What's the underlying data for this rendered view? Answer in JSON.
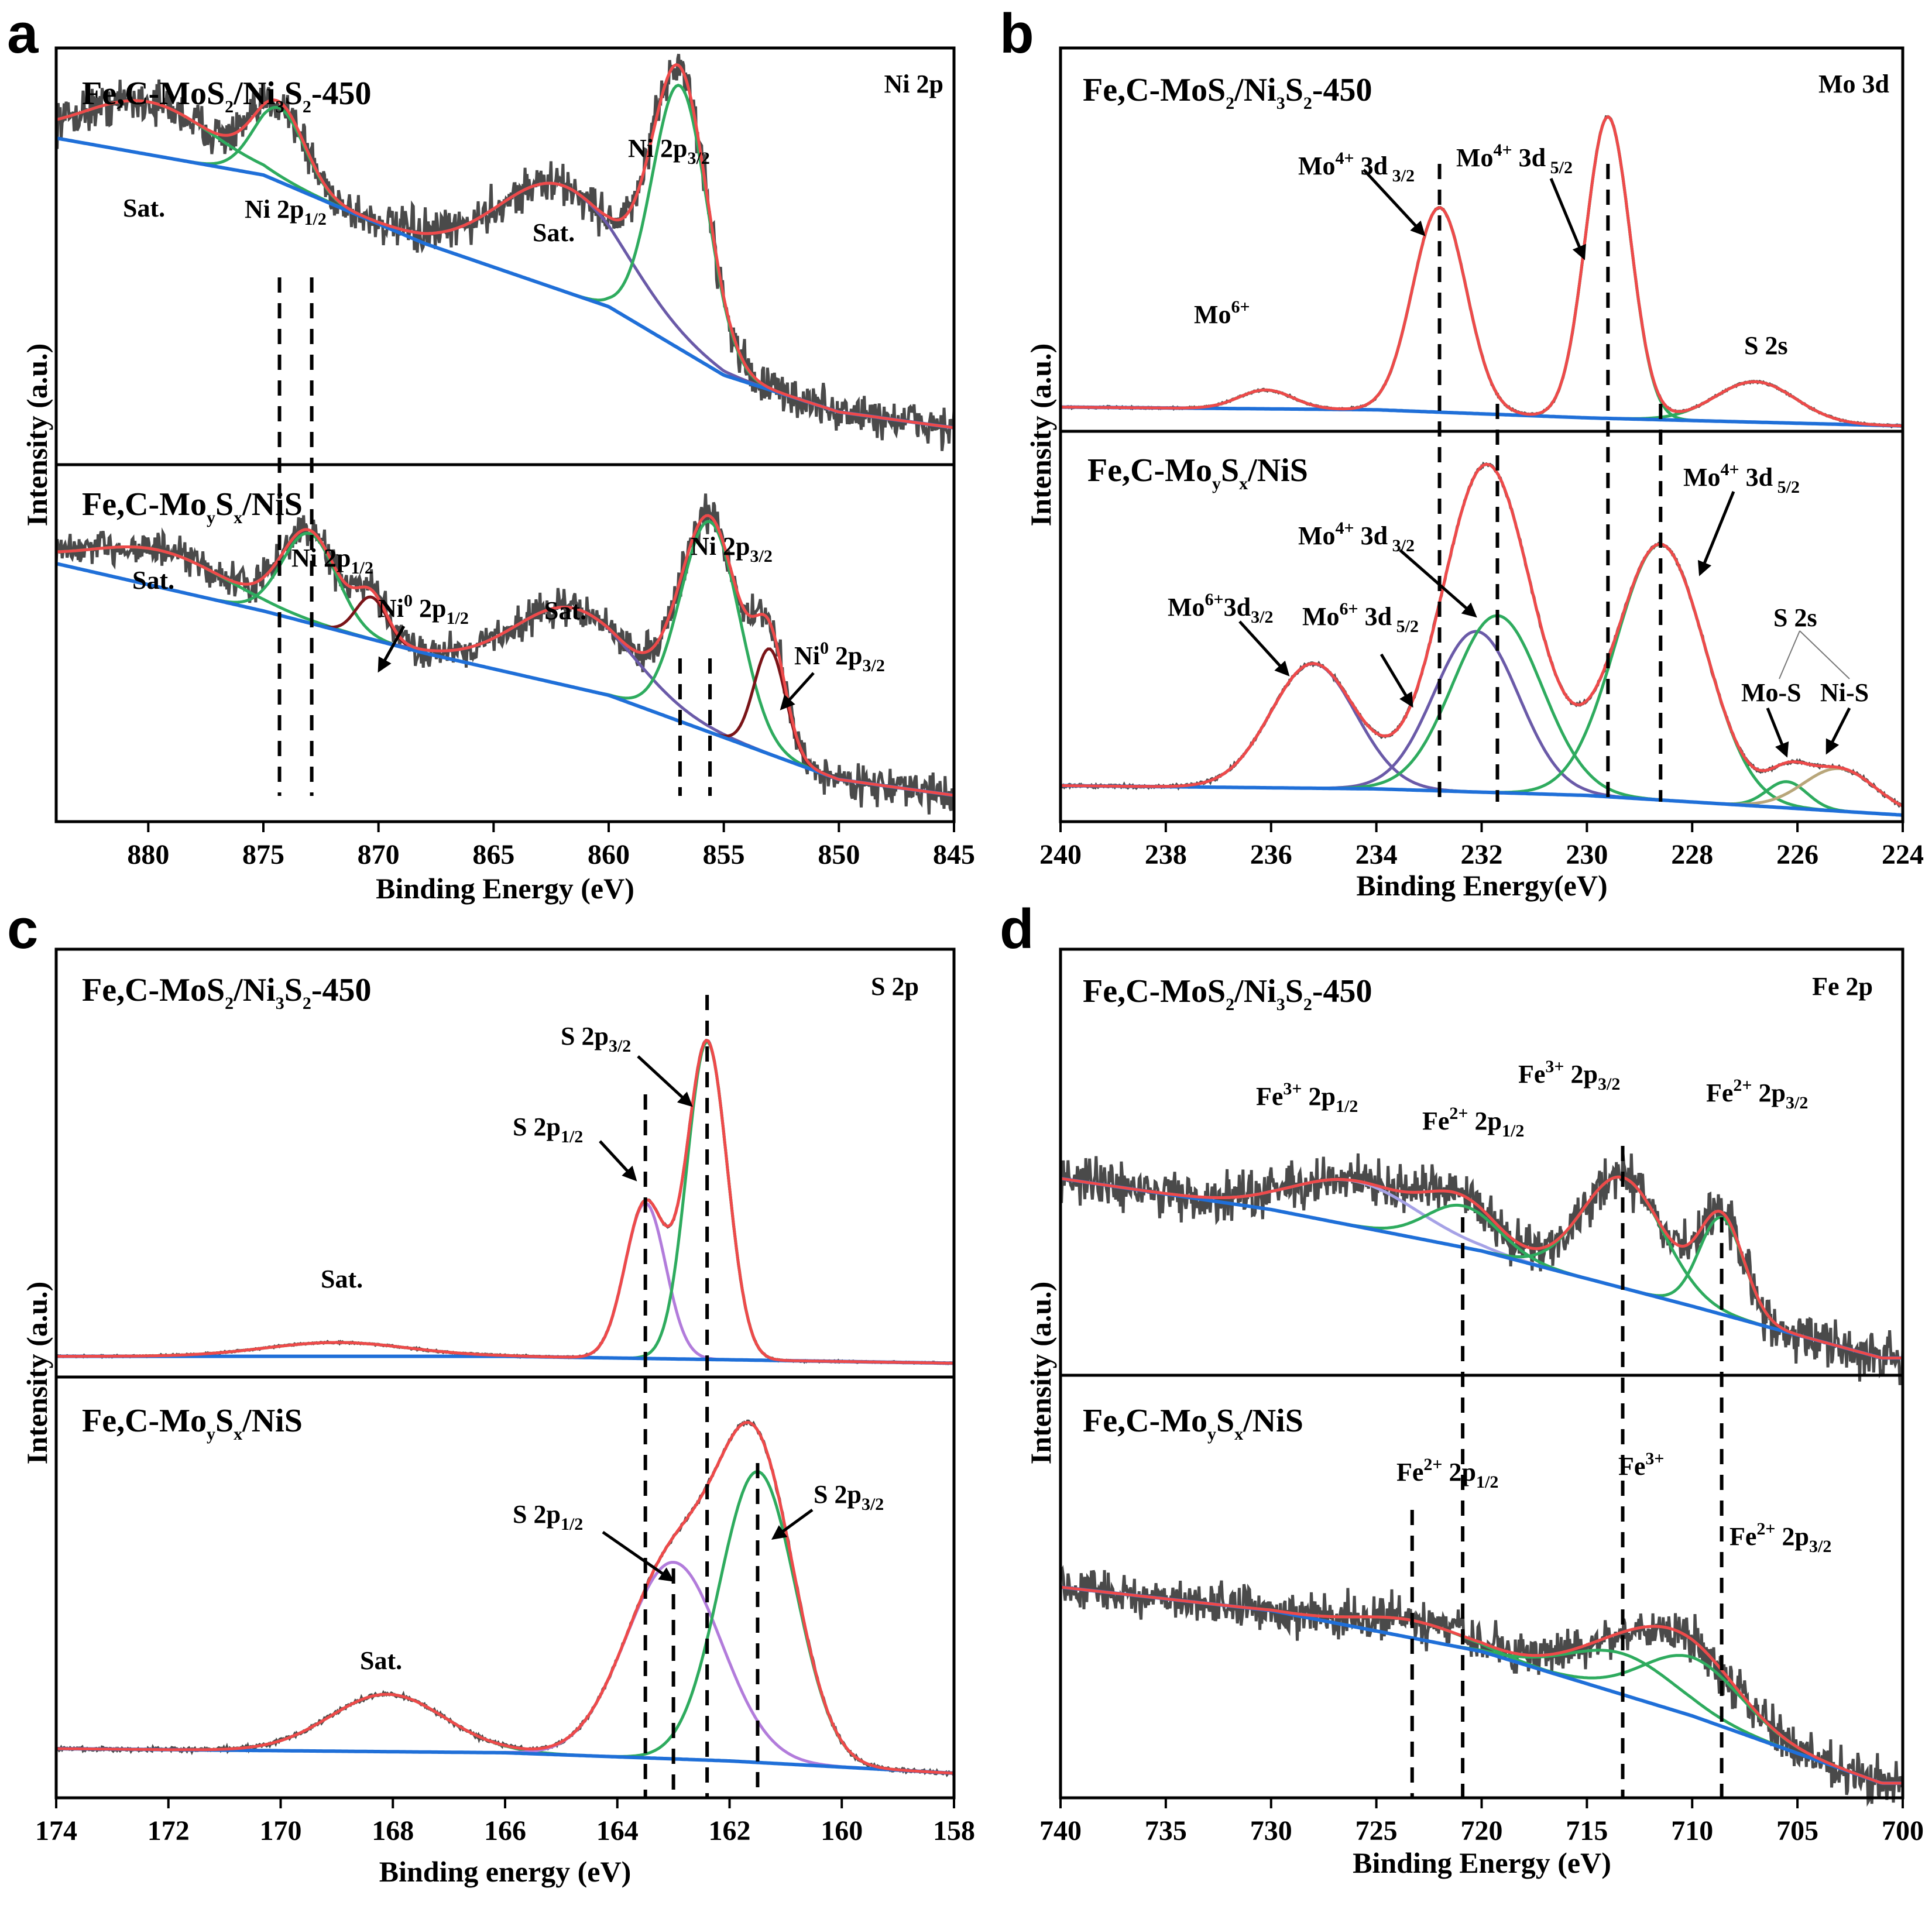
{
  "figure": {
    "colors": {
      "raw": "#4a4a4a",
      "envelope": "#ee4a4a",
      "background": "#1f6fd8",
      "green": "#2eab5e",
      "purple": "#6a5aa8",
      "darkred": "#7a1418",
      "violet": "#b27cdb",
      "lilac": "#a6a2e6",
      "tan": "#b8a67a"
    }
  },
  "panels": {
    "a": {
      "letter": "a",
      "xlabel": "Binding Energy (eV)",
      "ylabel": "Intensity (a.u.)",
      "region": "Ni 2p",
      "top_sample": {
        "main": "Fe,C-MoS",
        "s1": "2",
        "mid": "/Ni",
        "s2": "3",
        "mid2": "S",
        "s3": "2",
        "tail": "-450"
      },
      "bottom_sample": {
        "main": "Fe,C-Mo",
        "s1": "y",
        "mid": "S",
        "s2": "x",
        "tail": "/NiS"
      },
      "labels": {
        "top_sat1": "Sat.",
        "top_ni2p12": "Ni 2p",
        "top_ni2p12_sub": "1/2",
        "top_sat2": "Sat.",
        "top_ni2p32": "Ni 2p",
        "top_ni2p32_sub": "3/2",
        "bot_sat1": "Sat.",
        "bot_ni2p12": "Ni 2p",
        "bot_ni2p12_sub": "1/2",
        "bot_ni0_12": "Ni",
        "bot_ni0_12_sup": "0",
        "bot_ni0_12_b": " 2p",
        "bot_ni0_12_sub": "1/2",
        "bot_sat2": "Sat.",
        "bot_ni2p32": "Ni 2p",
        "bot_ni2p32_sub": "3/2",
        "bot_ni0_32": "Ni",
        "bot_ni0_32_sup": "0",
        "bot_ni0_32_b": " 2p",
        "bot_ni0_32_sub": "3/2"
      }
    },
    "b": {
      "letter": "b",
      "xlabel": "Binding Energy(eV)",
      "ylabel": "Intensity (a.u.)",
      "region": "Mo 3d",
      "top_sample": {
        "main": "Fe,C-MoS",
        "s1": "2",
        "mid": "/Ni",
        "s2": "3",
        "mid2": "S",
        "s3": "2",
        "tail": "-450"
      },
      "bottom_sample": {
        "main": "Fe,C-Mo",
        "s1": "y",
        "mid": "S",
        "s2": "x",
        "tail": "/NiS"
      },
      "labels": {
        "top_mo6": "Mo",
        "top_mo6_sup": "6+",
        "top_mo4_32": "Mo",
        "top_mo4_32_sup": "4+",
        "top_mo4_32_b": " 3d",
        "top_mo4_32_sub": " 3/2",
        "top_mo4_52": "Mo",
        "top_mo4_52_sup": "4+",
        "top_mo4_52_b": " 3d",
        "top_mo4_52_sub": " 5/2",
        "top_s2s": "S 2s",
        "bot_mo6_32": "Mo",
        "bot_mo6_32_sup": "6+",
        "bot_mo6_32_b": "3d",
        "bot_mo6_32_sub": "3/2",
        "bot_mo6_52": "Mo",
        "bot_mo6_52_sup": "6+",
        "bot_mo6_52_b": " 3d",
        "bot_mo6_52_sub": " 5/2",
        "bot_mo4_32": "Mo",
        "bot_mo4_32_sup": "4+",
        "bot_mo4_32_b": " 3d",
        "bot_mo4_32_sub": " 3/2",
        "bot_mo4_52": "Mo",
        "bot_mo4_52_sup": "4+",
        "bot_mo4_52_b": " 3d",
        "bot_mo4_52_sub": " 5/2",
        "bot_s2s": "S 2s",
        "bot_mos": "Mo-S",
        "bot_nis": "Ni-S"
      }
    },
    "c": {
      "letter": "c",
      "xlabel": "Binding energy (eV)",
      "ylabel": "Intensity (a.u.)",
      "region": "S 2p",
      "top_sample": {
        "main": "Fe,C-MoS",
        "s1": "2",
        "mid": "/Ni",
        "s2": "3",
        "mid2": "S",
        "s3": "2",
        "tail": "-450"
      },
      "bottom_sample": {
        "main": "Fe,C-Mo",
        "s1": "y",
        "mid": "S",
        "s2": "x",
        "tail": "/NiS"
      },
      "labels": {
        "top_sat": "Sat.",
        "top_s2p32": "S 2p",
        "top_s2p32_sub": "3/2",
        "top_s2p12": "S 2p",
        "top_s2p12_sub": "1/2",
        "bot_sat": "Sat.",
        "bot_s2p12": "S 2p",
        "bot_s2p12_sub": "1/2",
        "bot_s2p32": "S 2p",
        "bot_s2p32_sub": "3/2"
      }
    },
    "d": {
      "letter": "d",
      "xlabel": "Binding Energy (eV)",
      "ylabel": "Intensity (a.u.)",
      "region": "Fe 2p",
      "top_sample": {
        "main": "Fe,C-MoS",
        "s1": "2",
        "mid": "/Ni",
        "s2": "3",
        "mid2": "S",
        "s3": "2",
        "tail": "-450"
      },
      "bottom_sample": {
        "main": "Fe,C-Mo",
        "s1": "y",
        "mid": "S",
        "s2": "x",
        "tail": "/NiS"
      },
      "labels": {
        "top_fe3_12": "Fe",
        "top_fe3_12_sup": "3+",
        "top_fe3_12_b": " 2p",
        "top_fe3_12_sub": "1/2",
        "top_fe2_12": "Fe",
        "top_fe2_12_sup": "2+",
        "top_fe2_12_b": " 2p",
        "top_fe2_12_sub": "1/2",
        "top_fe3_32": "Fe",
        "top_fe3_32_sup": "3+",
        "top_fe3_32_b": " 2p",
        "top_fe3_32_sub": "3/2",
        "top_fe2_32": "Fe",
        "top_fe2_32_sup": "2+",
        "top_fe2_32_b": " 2p",
        "top_fe2_32_sub": "3/2",
        "bot_fe2_12": "Fe",
        "bot_fe2_12_sup": "2+",
        "bot_fe2_12_b": " 2p",
        "bot_fe2_12_sub": "1/2",
        "bot_fe3": "Fe",
        "bot_fe3_sup": "3+",
        "bot_fe2_32": "Fe",
        "bot_fe2_32_sup": "2+",
        "bot_fe2_32_b": " 2p",
        "bot_fe2_32_sub": "3/2"
      }
    }
  },
  "chart_data": [
    {
      "panel": "a",
      "type": "line",
      "title": "Ni 2p",
      "xlabel": "Binding Energy (eV)",
      "ylabel": "Intensity (a.u.)",
      "xlim": [
        884,
        845
      ],
      "xticks": [
        880,
        875,
        870,
        865,
        860,
        855,
        850,
        845
      ],
      "reference_lines_eV": [
        874.3,
        872.9,
        856.9,
        855.6
      ],
      "subplots": [
        {
          "sample": "Fe,C-MoS2/Ni3S2-450",
          "noise": 0.06,
          "background": {
            "x": [
              884,
              875,
              868,
              860,
              855,
              850,
              845
            ],
            "y": [
              0.62,
              0.55,
              0.42,
              0.3,
              0.17,
              0.1,
              0.07
            ]
          },
          "peaks": [
            {
              "name": "Sat.",
              "color": "blue",
              "center": 880.0,
              "fwhm": 6.5,
              "height": 0.1
            },
            {
              "name": "Ni 2p1/2",
              "color": "green",
              "center": 874.3,
              "fwhm": 2.6,
              "height": 0.14
            },
            {
              "name": "Sat.",
              "color": "purple",
              "center": 862.0,
              "fwhm": 6.5,
              "height": 0.2
            },
            {
              "name": "Ni 2p3/2",
              "color": "green",
              "center": 856.9,
              "fwhm": 2.8,
              "height": 0.5
            }
          ]
        },
        {
          "sample": "Fe,C-MoySx/NiS",
          "noise": 0.05,
          "background": {
            "x": [
              884,
              875,
              868,
              860,
              855,
              850,
              845
            ],
            "y": [
              0.49,
              0.4,
              0.32,
              0.24,
              0.16,
              0.08,
              0.05
            ]
          },
          "peaks": [
            {
              "name": "Sat.",
              "color": "blue",
              "center": 879.5,
              "fwhm": 7.0,
              "height": 0.07
            },
            {
              "name": "Ni 2p1/2",
              "color": "green",
              "center": 873.0,
              "fwhm": 2.8,
              "height": 0.17
            },
            {
              "name": "Ni0 2p1/2",
              "color": "darkred",
              "center": 870.3,
              "fwhm": 1.6,
              "height": 0.08
            },
            {
              "name": "Sat.",
              "color": "purple",
              "center": 861.5,
              "fwhm": 6.0,
              "height": 0.15
            },
            {
              "name": "Ni 2p3/2",
              "color": "green",
              "center": 855.6,
              "fwhm": 3.0,
              "height": 0.4
            },
            {
              "name": "Ni0 2p3/2",
              "color": "darkred",
              "center": 853.0,
              "fwhm": 1.6,
              "height": 0.2
            }
          ]
        }
      ]
    },
    {
      "panel": "b",
      "type": "line",
      "title": "Mo 3d",
      "xlabel": "Binding Energy(eV)",
      "ylabel": "Intensity (a.u.)",
      "xlim": [
        240,
        224
      ],
      "xticks": [
        240,
        238,
        236,
        234,
        232,
        230,
        228,
        226,
        224
      ],
      "reference_lines_eV": [
        232.8,
        231.7,
        229.6,
        228.6
      ],
      "subplots": [
        {
          "sample": "Fe,C-MoS2/Ni3S2-450",
          "noise": 0.004,
          "background": {
            "x": [
              240,
              234,
              230,
              226,
              224
            ],
            "y": [
              0.09,
              0.08,
              0.05,
              0.03,
              0.02
            ]
          },
          "peaks": [
            {
              "name": "Mo6+",
              "color": "green",
              "center": 236.1,
              "fwhm": 1.2,
              "height": 0.07
            },
            {
              "name": "Mo4+ 3d3/2",
              "color": "green",
              "center": 232.8,
              "fwhm": 1.2,
              "height": 0.76
            },
            {
              "name": "Mo4+ 3d5/2",
              "color": "green",
              "center": 229.6,
              "fwhm": 1.0,
              "height": 1.12
            },
            {
              "name": "S 2s",
              "color": "blue",
              "center": 226.8,
              "fwhm": 1.8,
              "height": 0.15
            }
          ]
        },
        {
          "sample": "Fe,C-MoySx/NiS",
          "noise": 0.006,
          "background": {
            "x": [
              240,
              234,
              230,
              226,
              224
            ],
            "y": [
              0.11,
              0.1,
              0.08,
              0.04,
              0.02
            ]
          },
          "peaks": [
            {
              "name": "Mo6+ 3d3/2",
              "color": "purple",
              "center": 235.2,
              "fwhm": 1.9,
              "height": 0.38
            },
            {
              "name": "Mo6+ 3d5/2",
              "color": "purple",
              "center": 232.1,
              "fwhm": 1.9,
              "height": 0.49
            },
            {
              "name": "Mo4+ 3d3/2",
              "color": "green",
              "center": 231.7,
              "fwhm": 2.0,
              "height": 0.54
            },
            {
              "name": "Mo4+ 3d5/2",
              "color": "green",
              "center": 228.6,
              "fwhm": 2.0,
              "height": 0.78
            },
            {
              "name": "Mo-S",
              "color": "blue",
              "center": 226.2,
              "fwhm": 0.9,
              "height": 0.08
            },
            {
              "name": "Ni-S",
              "color": "tan",
              "center": 225.2,
              "fwhm": 1.6,
              "height": 0.13
            }
          ]
        }
      ]
    },
    {
      "panel": "c",
      "type": "line",
      "title": "S 2p",
      "xlabel": "Binding energy (eV)",
      "ylabel": "Intensity (a.u.)",
      "xlim": [
        174,
        158
      ],
      "xticks": [
        174,
        172,
        170,
        168,
        166,
        164,
        162,
        160,
        158
      ],
      "reference_lines_eV": [
        163.5,
        162.4,
        163.0,
        161.5
      ],
      "subplots": [
        {
          "sample": "Fe,C-MoS2/Ni3S2-450",
          "noise": 0.003,
          "background": {
            "x": [
              174,
              166,
              162,
              158
            ],
            "y": [
              0.06,
              0.06,
              0.05,
              0.04
            ]
          },
          "peaks": [
            {
              "name": "Sat.",
              "color": "blue",
              "center": 169.0,
              "fwhm": 3.0,
              "height": 0.04
            },
            {
              "name": "S 2p1/2",
              "color": "violet",
              "center": 163.5,
              "fwhm": 0.85,
              "height": 0.45
            },
            {
              "name": "S 2p3/2",
              "color": "green",
              "center": 162.4,
              "fwhm": 0.85,
              "height": 0.92
            }
          ]
        },
        {
          "sample": "Fe,C-MoySx/NiS",
          "noise": 0.006,
          "background": {
            "x": [
              174,
              166,
              162,
              158
            ],
            "y": [
              0.12,
              0.11,
              0.09,
              0.06
            ]
          },
          "peaks": [
            {
              "name": "Sat.",
              "color": "blue",
              "center": 168.1,
              "fwhm": 2.4,
              "height": 0.14
            },
            {
              "name": "S 2p1/2",
              "color": "violet",
              "center": 163.0,
              "fwhm": 2.0,
              "height": 0.48
            },
            {
              "name": "S 2p3/2",
              "color": "green",
              "center": 161.5,
              "fwhm": 1.6,
              "height": 0.71
            }
          ]
        }
      ]
    },
    {
      "panel": "d",
      "type": "line",
      "title": "Fe 2p",
      "xlabel": "Binding Energy (eV)",
      "ylabel": "Intensity (a.u.)",
      "xlim": [
        740,
        700
      ],
      "xticks": [
        740,
        735,
        730,
        725,
        720,
        715,
        710,
        705,
        700
      ],
      "reference_lines_eV": [
        720.9,
        713.3,
        708.6,
        723.3
      ],
      "subplots": [
        {
          "sample": "Fe,C-MoS2/Ni3S2-450",
          "noise": 0.1,
          "background": {
            "x": [
              740,
              730,
              720,
              710,
              701
            ],
            "y": [
              0.57,
              0.48,
              0.36,
              0.2,
              0.05
            ]
          },
          "peaks": [
            {
              "name": "Fe3+ 2p1/2",
              "color": "lilac",
              "center": 726.0,
              "fwhm": 7.0,
              "height": 0.13
            },
            {
              "name": "Fe2+ 2p1/2",
              "color": "green",
              "center": 720.9,
              "fwhm": 4.0,
              "height": 0.12
            },
            {
              "name": "Fe3+ 2p3/2",
              "color": "blue",
              "center": 713.3,
              "fwhm": 4.5,
              "height": 0.32
            },
            {
              "name": "Fe2+ 2p3/2",
              "color": "green",
              "center": 708.6,
              "fwhm": 2.5,
              "height": 0.28
            }
          ]
        },
        {
          "sample": "Fe,C-MoySx/NiS",
          "noise": 0.11,
          "background": {
            "x": [
              740,
              730,
              720,
              710,
              701
            ],
            "y": [
              0.72,
              0.64,
              0.5,
              0.28,
              0.05
            ]
          },
          "peaks": [
            {
              "name": "Fe2+ 2p1/2",
              "color": "green",
              "center": 723.3,
              "fwhm": 6.0,
              "height": 0.06
            },
            {
              "name": "Fe3+",
              "color": "blue",
              "center": 713.3,
              "fwhm": 6.0,
              "height": 0.14
            },
            {
              "name": "Fe2+ 2p3/2",
              "color": "green",
              "center": 710.0,
              "fwhm": 5.5,
              "height": 0.2
            }
          ]
        }
      ]
    }
  ]
}
